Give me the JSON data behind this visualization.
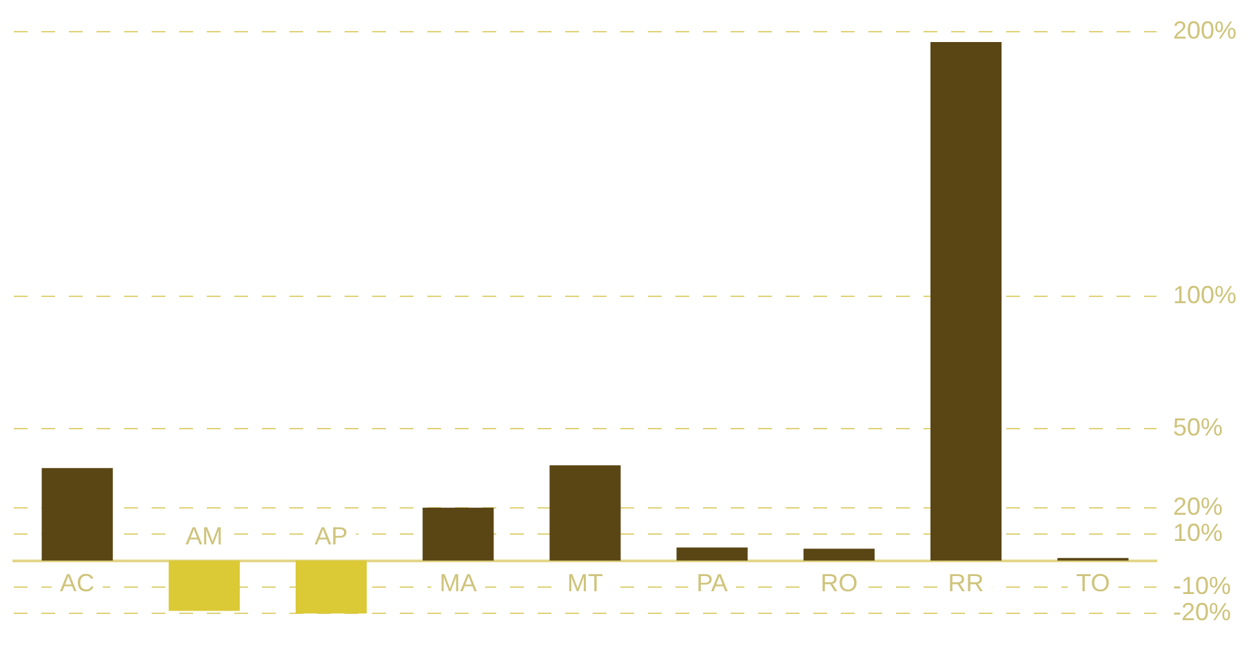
{
  "chart_data": {
    "type": "bar",
    "categories": [
      "AC",
      "AM",
      "AP",
      "MA",
      "MT",
      "PA",
      "RO",
      "RR",
      "TO"
    ],
    "values": [
      35,
      -19,
      -20,
      20,
      36,
      5,
      4.5,
      196,
      1
    ],
    "colors": [
      "#5a4514",
      "#dbc935",
      "#dbc935",
      "#5a4514",
      "#5a4514",
      "#5a4514",
      "#5a4514",
      "#5a4514",
      "#5a4514"
    ],
    "ylim": [
      -20,
      200
    ],
    "yticks": [
      {
        "value": 200,
        "label": "200%"
      },
      {
        "value": 100,
        "label": "100%"
      },
      {
        "value": 50,
        "label": "50%"
      },
      {
        "value": 20,
        "label": "20%"
      },
      {
        "value": 10,
        "label": "10%"
      },
      {
        "value": -10,
        "label": "-10%"
      },
      {
        "value": -20,
        "label": "-20%"
      }
    ],
    "grid": "y",
    "line_style": "dashed",
    "legend": false
  }
}
